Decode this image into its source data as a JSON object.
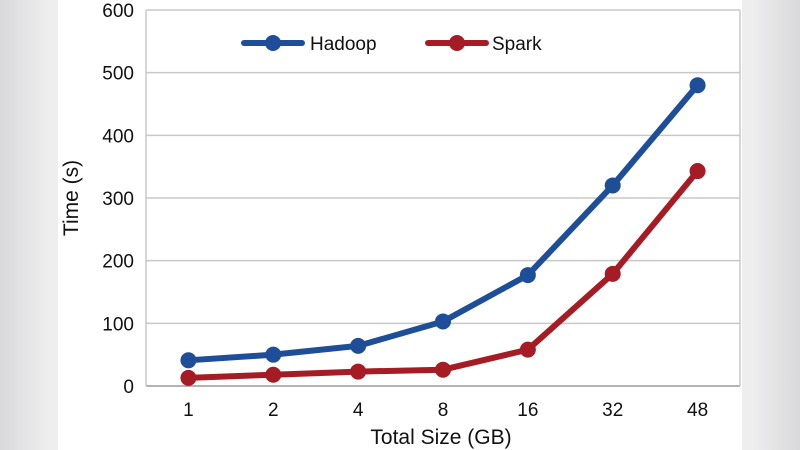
{
  "chart_data": {
    "type": "line",
    "categories": [
      "1",
      "2",
      "4",
      "8",
      "16",
      "32",
      "48"
    ],
    "series": [
      {
        "name": "Hadoop",
        "color": "#1f4e99",
        "values": [
          41,
          50,
          64,
          103,
          177,
          320,
          480
        ]
      },
      {
        "name": "Spark",
        "color": "#a61c24",
        "values": [
          13,
          18,
          23,
          26,
          58,
          179,
          343
        ]
      }
    ],
    "xlabel": "Total Size (GB)",
    "ylabel": "Time (s)",
    "ylim": [
      0,
      600
    ],
    "yticks": [
      0,
      100,
      200,
      300,
      400,
      500,
      600
    ],
    "grid": true,
    "legend": "top-center"
  }
}
